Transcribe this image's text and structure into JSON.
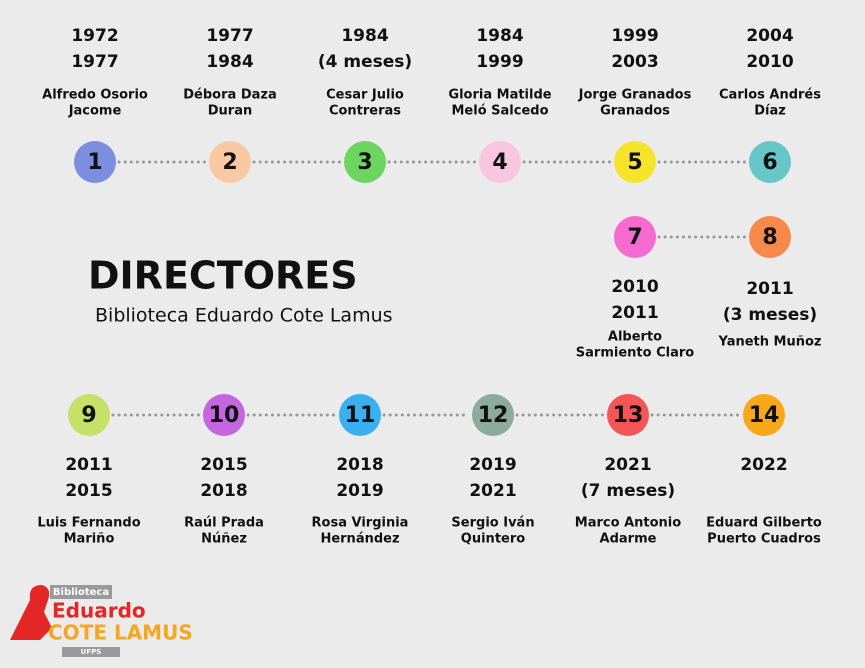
{
  "header": {
    "title": "DIRECTORES",
    "subtitle": "Biblioteca Eduardo Cote Lamus"
  },
  "nodes": [
    {
      "number": "1",
      "color": "#7b8ee0",
      "dates": [
        "1972",
        "1977"
      ],
      "name": [
        "Alfredo Osorio",
        "Jacome"
      ]
    },
    {
      "number": "2",
      "color": "#f9c9a3",
      "dates": [
        "1977",
        "1984"
      ],
      "name": [
        "Débora Daza",
        "Duran"
      ]
    },
    {
      "number": "3",
      "color": "#6dd460",
      "dates": [
        "1984",
        "(4 meses)"
      ],
      "name": [
        "Cesar Julio",
        "Contreras"
      ]
    },
    {
      "number": "4",
      "color": "#f9c6e0",
      "dates": [
        "1984",
        "1999"
      ],
      "name": [
        "Gloria Matilde",
        "Meló Salcedo"
      ]
    },
    {
      "number": "5",
      "color": "#f5e52a",
      "dates": [
        "1999",
        "2003"
      ],
      "name": [
        "Jorge Granados",
        "Granados"
      ]
    },
    {
      "number": "6",
      "color": "#67c6c8",
      "dates": [
        "2004",
        "2010"
      ],
      "name": [
        "Carlos Andrés",
        "Díaz"
      ]
    },
    {
      "number": "7",
      "color": "#f76bd0",
      "dates": [
        "2010",
        "2011"
      ],
      "name": [
        "Alberto",
        "Sarmiento Claro"
      ]
    },
    {
      "number": "8",
      "color": "#f7894a",
      "dates": [
        "2011",
        "(3 meses)"
      ],
      "name": [
        "Yaneth Muñoz"
      ]
    },
    {
      "number": "9",
      "color": "#c6e06a",
      "dates": [
        "2011",
        "2015"
      ],
      "name": [
        "Luis Fernando",
        "Mariño"
      ]
    },
    {
      "number": "10",
      "color": "#c466e0",
      "dates": [
        "2015",
        "2018"
      ],
      "name": [
        "Raúl Prada",
        "Núñez"
      ]
    },
    {
      "number": "11",
      "color": "#3ab0f0",
      "dates": [
        "2018",
        "2019"
      ],
      "name": [
        "Rosa Virginia",
        "Hernández"
      ]
    },
    {
      "number": "12",
      "color": "#8aab9e",
      "dates": [
        "2019",
        "2021"
      ],
      "name": [
        "Sergio Iván",
        "Quintero"
      ]
    },
    {
      "number": "13",
      "color": "#f45555",
      "dates": [
        "2021",
        "(7 meses)"
      ],
      "name": [
        "Marco Antonio",
        "Adarme"
      ]
    },
    {
      "number": "14",
      "color": "#f9a81c",
      "dates": [
        "2022"
      ],
      "name": [
        "Eduard Gilberto",
        "Puerto Cuadros"
      ]
    }
  ],
  "logo": {
    "top": "Biblioteca",
    "line1": "Eduardo",
    "line2": "COTE LAMUS",
    "bottom": "UFPS"
  }
}
